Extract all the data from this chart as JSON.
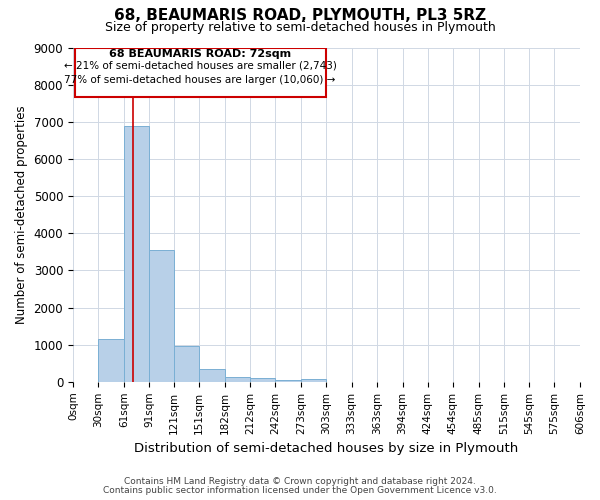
{
  "title_line1": "68, BEAUMARIS ROAD, PLYMOUTH, PL3 5RZ",
  "title_line2": "Size of property relative to semi-detached houses in Plymouth",
  "xlabel": "Distribution of semi-detached houses by size in Plymouth",
  "ylabel": "Number of semi-detached properties",
  "footnote1": "Contains HM Land Registry data © Crown copyright and database right 2024.",
  "footnote2": "Contains public sector information licensed under the Open Government Licence v3.0.",
  "annotation_title": "68 BEAUMARIS ROAD: 72sqm",
  "annotation_line2": "← 21% of semi-detached houses are smaller (2,743)",
  "annotation_line3": "77% of semi-detached houses are larger (10,060) →",
  "property_sqm": 72,
  "bin_edges": [
    0,
    30,
    61,
    91,
    121,
    151,
    182,
    212,
    242,
    273,
    303,
    333,
    363,
    394,
    424,
    454,
    485,
    515,
    545,
    575,
    606
  ],
  "bar_heights": [
    0,
    1140,
    6890,
    3560,
    970,
    340,
    140,
    110,
    60,
    70,
    0,
    0,
    0,
    0,
    0,
    0,
    0,
    0,
    0,
    0
  ],
  "bar_color": "#b8d0e8",
  "bar_edge_color": "#7aafd4",
  "red_line_color": "#cc0000",
  "grid_color": "#d0d8e4",
  "annotation_box_color": "#cc0000",
  "background_color": "#ffffff",
  "ylim": [
    0,
    9000
  ],
  "yticks": [
    0,
    1000,
    2000,
    3000,
    4000,
    5000,
    6000,
    7000,
    8000,
    9000
  ],
  "xtick_labels": [
    "0sqm",
    "30sqm",
    "61sqm",
    "91sqm",
    "121sqm",
    "151sqm",
    "182sqm",
    "212sqm",
    "242sqm",
    "273sqm",
    "303sqm",
    "333sqm",
    "363sqm",
    "394sqm",
    "424sqm",
    "454sqm",
    "485sqm",
    "515sqm",
    "545sqm",
    "575sqm",
    "606sqm"
  ]
}
